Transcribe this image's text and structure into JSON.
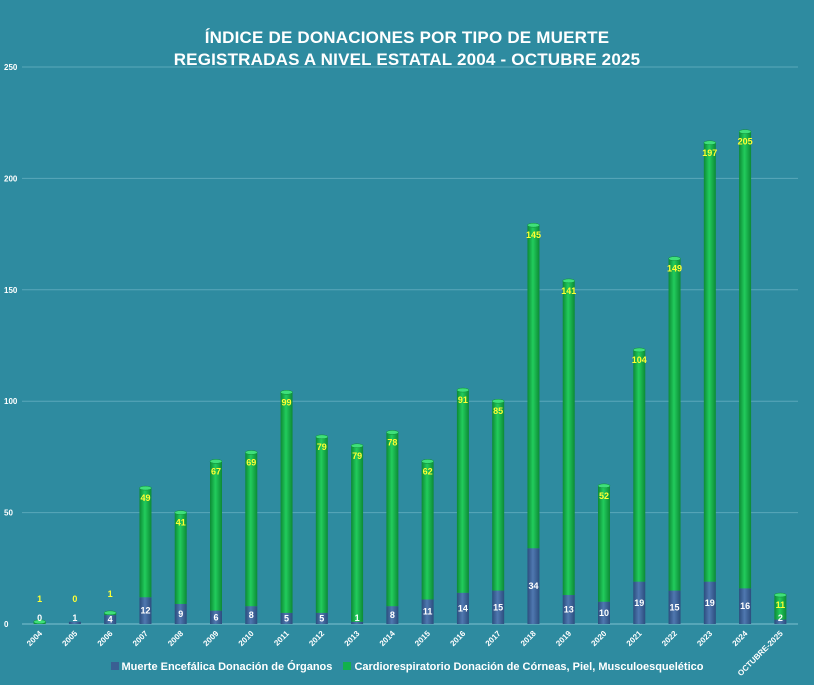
{
  "chart_data": {
    "type": "bar",
    "stacked": true,
    "title": "ÍNDICE DE DONACIONES POR TIPO DE MUERTE",
    "subtitle": "REGISTRADAS A NIVEL ESTATAL 2004 - OCTUBRE 2025",
    "categories": [
      "2004",
      "2005",
      "2006",
      "2007",
      "2008",
      "2009",
      "2010",
      "2011",
      "2012",
      "2013",
      "2014",
      "2015",
      "2016",
      "2017",
      "2018",
      "2019",
      "2020",
      "2021",
      "2022",
      "2023",
      "2024",
      "OCTUBRE-2025"
    ],
    "series": [
      {
        "name": "Muerte Encefálica Donación de Órganos",
        "color": "#3a5f93",
        "values": [
          0,
          1,
          4,
          12,
          9,
          6,
          8,
          5,
          5,
          1,
          8,
          11,
          14,
          15,
          34,
          13,
          10,
          19,
          15,
          19,
          16,
          2
        ]
      },
      {
        "name": "Cardiorespiratorio Donación de Córneas, Piel, Musculoesquelético",
        "color": "#12b14a",
        "values": [
          1,
          0,
          1,
          49,
          41,
          67,
          69,
          99,
          79,
          79,
          78,
          62,
          91,
          85,
          145,
          141,
          52,
          104,
          149,
          197,
          205,
          11
        ]
      }
    ],
    "yticks": [
      0,
      50,
      100,
      150,
      200,
      250
    ],
    "ylim": [
      0,
      250
    ],
    "grid": true,
    "legend_position": "bottom"
  }
}
